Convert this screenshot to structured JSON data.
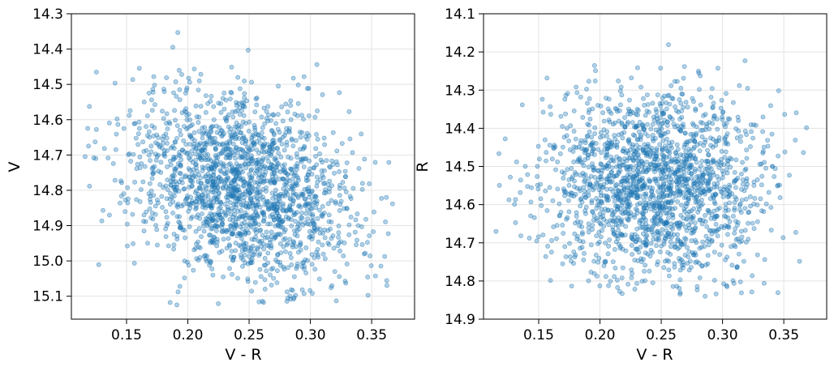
{
  "chart_data": [
    {
      "type": "scatter",
      "xlabel": "V - R",
      "ylabel": "V",
      "xlim": [
        0.105,
        0.385
      ],
      "ylim": [
        15.165,
        14.3
      ],
      "y_inverted": true,
      "grid": true,
      "x_ticks": [
        0.15,
        0.2,
        0.25,
        0.3,
        0.35
      ],
      "x_tick_labels": [
        "0.15",
        "0.20",
        "0.25",
        "0.30",
        "0.35"
      ],
      "y_ticks": [
        14.3,
        14.4,
        14.5,
        14.6,
        14.7,
        14.8,
        14.9,
        15.0,
        15.1
      ],
      "y_tick_labels": [
        "14.3",
        "14.4",
        "14.5",
        "14.6",
        "14.7",
        "14.8",
        "14.9",
        "15.0",
        "15.1"
      ],
      "marker_color": "#1f77b4",
      "marker_alpha": 0.35,
      "point_count": 1800,
      "distribution": {
        "x_mean": 0.245,
        "x_std": 0.045,
        "x_range": [
          0.115,
          0.375
        ],
        "y_mean": 14.79,
        "y_std": 0.135,
        "y_range": [
          14.33,
          15.125
        ],
        "correlation": 0.25
      }
    },
    {
      "type": "scatter",
      "xlabel": "V - R",
      "ylabel": "R",
      "xlim": [
        0.105,
        0.385
      ],
      "ylim": [
        14.9,
        14.1
      ],
      "y_inverted": true,
      "grid": true,
      "x_ticks": [
        0.15,
        0.2,
        0.25,
        0.3,
        0.35
      ],
      "x_tick_labels": [
        "0.15",
        "0.20",
        "0.25",
        "0.30",
        "0.35"
      ],
      "y_ticks": [
        14.1,
        14.2,
        14.3,
        14.4,
        14.5,
        14.6,
        14.7,
        14.8,
        14.9
      ],
      "y_tick_labels": [
        "14.1",
        "14.2",
        "14.3",
        "14.4",
        "14.5",
        "14.6",
        "14.7",
        "14.8",
        "14.9"
      ],
      "marker_color": "#1f77b4",
      "marker_alpha": 0.35,
      "point_count": 1800,
      "distribution": {
        "x_mean": 0.245,
        "x_std": 0.045,
        "x_range": [
          0.115,
          0.375
        ],
        "y_mean": 14.55,
        "y_std": 0.13,
        "y_range": [
          14.17,
          14.84
        ],
        "correlation": 0.0
      }
    }
  ]
}
